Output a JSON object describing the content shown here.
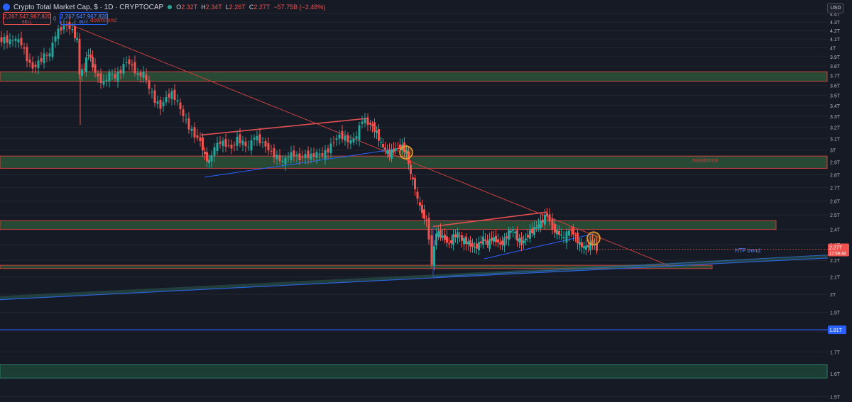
{
  "header": {
    "title": "Crypto Total Market Cap, $ · 1D · CRYPTOCAP",
    "ohlc": [
      {
        "k": "O",
        "v": "2.32T"
      },
      {
        "k": "H",
        "v": "2.34T"
      },
      {
        "k": "L",
        "v": "2.26T"
      },
      {
        "k": "C",
        "v": "2.27T"
      },
      {
        "k": "",
        "v": "−57.75B (−2.48%)"
      }
    ],
    "sell_price": "2,267,547,967,820",
    "sell_label": "SELL",
    "buy_price": "2,267,547,967,820",
    "buy_label": "BUY",
    "spread": "0",
    "currency": "USD"
  },
  "colors": {
    "background": "#161a25",
    "up": "#26a69a",
    "down": "#ef5350",
    "trendline_blue": "#2962ff",
    "zone_fill": "#2f5a3a",
    "zone_border": "#c8413f",
    "highlight_circle": "#f2a12b"
  },
  "chart_data": {
    "type": "candlestick",
    "symbol": "CRYPTOCAP",
    "timeframe": "1D",
    "yaxis": {
      "ticks": [
        "4.4T",
        "4.3T",
        "4.2T",
        "4.1T",
        "4T",
        "3.9T",
        "3.8T",
        "3.7T",
        "3.6T",
        "3.5T",
        "3.4T",
        "3.3T",
        "3.2T",
        "3.1T",
        "3T",
        "2.9T",
        "2.8T",
        "2.7T",
        "2.6T",
        "2.5T",
        "2.4T",
        "2.3T",
        "2.2T",
        "2.1T",
        "2T",
        "1.9T",
        "1.8T",
        "1.7T",
        "1.6T",
        "1.5T"
      ],
      "range": [
        1.48,
        4.45
      ],
      "scale": "log"
    },
    "current_price_label": "2.27T",
    "countdown_label": "17:59:48",
    "level_label": "1.81T",
    "levels": [
      {
        "kind": "resistance-zone",
        "from": 3.64,
        "to": 3.74
      },
      {
        "kind": "resistance-zone",
        "from": 2.85,
        "to": 2.95,
        "label": "resistance"
      },
      {
        "kind": "zone",
        "from": 2.4,
        "to": 2.46
      },
      {
        "kind": "zone",
        "from": 2.15,
        "to": 2.17
      },
      {
        "kind": "zone",
        "from": 1.58,
        "to": 1.64
      },
      {
        "kind": "horizontal-line",
        "value": 1.81
      }
    ],
    "annotations": [
      "downtrend",
      "resistance",
      "HTF trend"
    ],
    "price_points": [
      [
        0,
        4.08
      ],
      [
        8,
        4.1
      ],
      [
        16,
        4.07
      ],
      [
        24,
        4.1
      ],
      [
        32,
        4.05
      ],
      [
        40,
        3.88
      ],
      [
        48,
        3.78
      ],
      [
        56,
        3.84
      ],
      [
        64,
        3.91
      ],
      [
        72,
        3.93
      ],
      [
        80,
        4.15
      ],
      [
        88,
        4.23
      ],
      [
        96,
        4.27
      ],
      [
        104,
        4.2
      ],
      [
        110,
        4.08
      ],
      [
        114,
        3.72
      ],
      [
        120,
        3.78
      ],
      [
        126,
        3.95
      ],
      [
        132,
        3.8
      ],
      [
        140,
        3.68
      ],
      [
        148,
        3.62
      ],
      [
        156,
        3.72
      ],
      [
        164,
        3.68
      ],
      [
        172,
        3.75
      ],
      [
        180,
        3.86
      ],
      [
        188,
        3.8
      ],
      [
        196,
        3.7
      ],
      [
        204,
        3.72
      ],
      [
        212,
        3.57
      ],
      [
        220,
        3.45
      ],
      [
        228,
        3.39
      ],
      [
        236,
        3.48
      ],
      [
        244,
        3.52
      ],
      [
        252,
        3.43
      ],
      [
        260,
        3.3
      ],
      [
        268,
        3.2
      ],
      [
        276,
        3.13
      ],
      [
        284,
        3.08
      ],
      [
        290,
        2.95
      ],
      [
        296,
        2.9
      ],
      [
        304,
        3.02
      ],
      [
        312,
        3.07
      ],
      [
        320,
        3.05
      ],
      [
        328,
        3.02
      ],
      [
        336,
        3.1
      ],
      [
        344,
        3.06
      ],
      [
        352,
        3.02
      ],
      [
        360,
        3.12
      ],
      [
        368,
        3.08
      ],
      [
        376,
        3.04
      ],
      [
        384,
        2.98
      ],
      [
        392,
        2.94
      ],
      [
        400,
        2.9
      ],
      [
        408,
        2.95
      ],
      [
        416,
        2.97
      ],
      [
        424,
        2.93
      ],
      [
        432,
        2.96
      ],
      [
        440,
        2.95
      ],
      [
        448,
        2.97
      ],
      [
        456,
        2.96
      ],
      [
        464,
        3.0
      ],
      [
        472,
        3.08
      ],
      [
        480,
        3.13
      ],
      [
        488,
        3.1
      ],
      [
        496,
        3.07
      ],
      [
        504,
        3.12
      ],
      [
        512,
        3.27
      ],
      [
        520,
        3.24
      ],
      [
        526,
        3.21
      ],
      [
        532,
        3.15
      ],
      [
        538,
        3.05
      ],
      [
        544,
        3.0
      ],
      [
        550,
        2.96
      ],
      [
        556,
        3.0
      ],
      [
        562,
        3.02
      ],
      [
        568,
        3.03
      ],
      [
        574,
        2.98
      ],
      [
        580,
        2.8
      ],
      [
        586,
        2.7
      ],
      [
        590,
        2.6
      ],
      [
        596,
        2.52
      ],
      [
        602,
        2.45
      ],
      [
        606,
        2.35
      ],
      [
        610,
        2.18
      ],
      [
        616,
        2.38
      ],
      [
        622,
        2.36
      ],
      [
        628,
        2.34
      ],
      [
        634,
        2.3
      ],
      [
        640,
        2.35
      ],
      [
        646,
        2.37
      ],
      [
        652,
        2.33
      ],
      [
        658,
        2.32
      ],
      [
        664,
        2.3
      ],
      [
        670,
        2.28
      ],
      [
        676,
        2.3
      ],
      [
        682,
        2.34
      ],
      [
        688,
        2.3
      ],
      [
        694,
        2.34
      ],
      [
        700,
        2.33
      ],
      [
        706,
        2.3
      ],
      [
        712,
        2.33
      ],
      [
        718,
        2.38
      ],
      [
        724,
        2.4
      ],
      [
        730,
        2.34
      ],
      [
        736,
        2.31
      ],
      [
        742,
        2.34
      ],
      [
        748,
        2.38
      ],
      [
        754,
        2.4
      ],
      [
        760,
        2.43
      ],
      [
        766,
        2.46
      ],
      [
        772,
        2.51
      ],
      [
        776,
        2.45
      ],
      [
        780,
        2.41
      ],
      [
        786,
        2.38
      ],
      [
        792,
        2.36
      ],
      [
        796,
        2.34
      ],
      [
        800,
        2.37
      ],
      [
        806,
        2.4
      ],
      [
        812,
        2.35
      ],
      [
        818,
        2.3
      ],
      [
        824,
        2.28
      ],
      [
        830,
        2.29
      ],
      [
        836,
        2.31
      ],
      [
        842,
        2.27
      ]
    ],
    "circles": [
      {
        "x": 572,
        "y": 2.98
      },
      {
        "x": 836,
        "y": 2.34
      }
    ]
  }
}
